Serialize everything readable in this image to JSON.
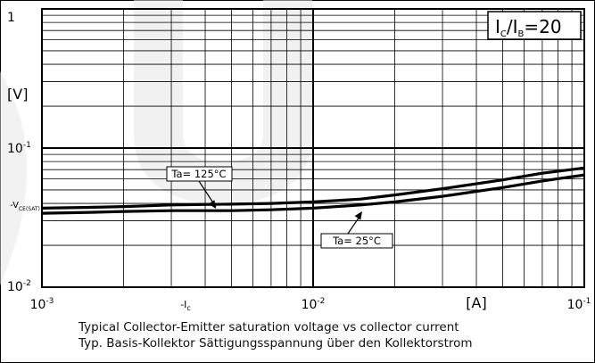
{
  "chart_data": {
    "type": "line",
    "title": "",
    "x_scale": "log",
    "y_scale": "log",
    "xlim": [
      0.001,
      0.1
    ],
    "ylim": [
      0.01,
      1
    ],
    "grid": true,
    "x_ticks": [
      {
        "value": 0.001,
        "base": "10",
        "exp": "-3"
      },
      {
        "value": 0.01,
        "base": "10",
        "exp": "-2"
      },
      {
        "value": 0.1,
        "base": "10",
        "exp": "-1"
      }
    ],
    "y_ticks": [
      {
        "value": 1,
        "base": "1",
        "exp": ""
      },
      {
        "value": 0.1,
        "base": "10",
        "exp": "-1"
      },
      {
        "value": 0.01,
        "base": "10",
        "exp": "-2"
      }
    ],
    "xlabel": {
      "main": "-I",
      "sub": "c"
    },
    "x_unit": "[A]",
    "ylabel": {
      "main": "-V",
      "sub": "CE(SAT)"
    },
    "y_unit": "[V]",
    "condition": {
      "i1": "I",
      "s1": "C",
      "slash": "/",
      "i2": "I",
      "s2": "B",
      "rest": "=20"
    },
    "series": [
      {
        "name": "Ta= 125°C",
        "x": [
          0.001,
          0.0015,
          0.002,
          0.003,
          0.005,
          0.007,
          0.01,
          0.015,
          0.02,
          0.03,
          0.05,
          0.07,
          0.1
        ],
        "y": [
          0.037,
          0.0375,
          0.038,
          0.039,
          0.0395,
          0.04,
          0.041,
          0.043,
          0.046,
          0.051,
          0.059,
          0.066,
          0.072
        ]
      },
      {
        "name": "Ta= 25°C",
        "x": [
          0.001,
          0.0015,
          0.002,
          0.003,
          0.005,
          0.007,
          0.01,
          0.015,
          0.02,
          0.03,
          0.05,
          0.07,
          0.1
        ],
        "y": [
          0.034,
          0.0345,
          0.035,
          0.0355,
          0.0355,
          0.036,
          0.037,
          0.039,
          0.041,
          0.045,
          0.052,
          0.058,
          0.064
        ]
      }
    ]
  },
  "captions": {
    "en": "Typical Collector-Emitter saturation voltage vs collector current",
    "de": "Typ. Basis-Kollektor Sättigungsspannung über den Kollektorstrom"
  },
  "colors": {
    "line": "#000000",
    "grid": "#000000",
    "watermark": "#e6e6e6"
  }
}
